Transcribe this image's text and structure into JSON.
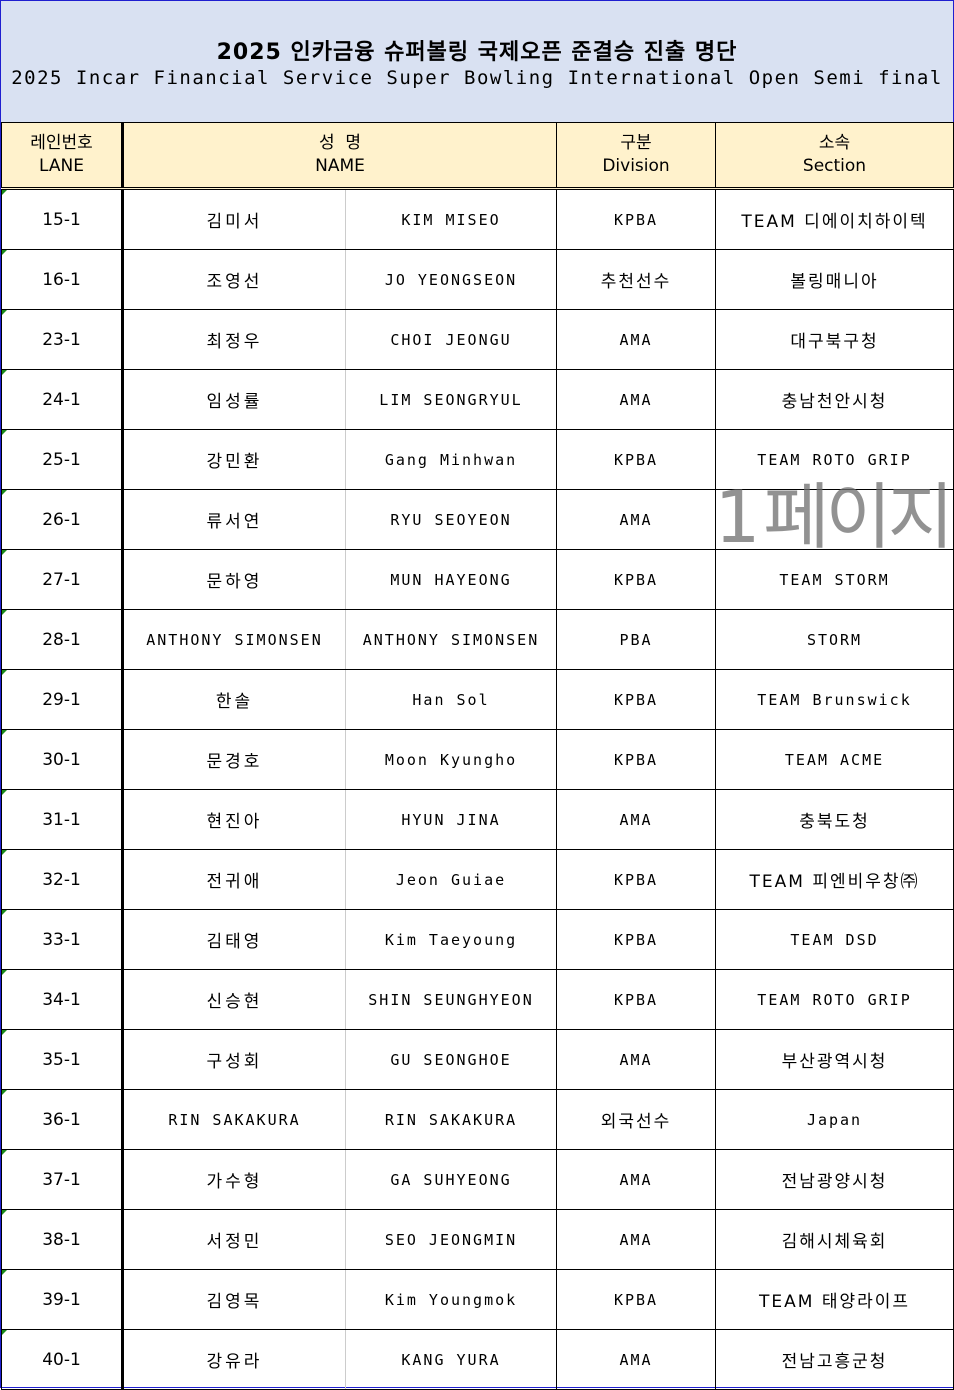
{
  "title_ko": "2025 인카금융 슈퍼볼링 국제오픈 준결승 진출 명단",
  "title_en": "2025 Incar Financial Service Super Bowling International Open Semi final",
  "headers": {
    "lane_ko": "레인번호",
    "lane_en": "LANE",
    "name_ko": "성  명",
    "name_en": "NAME",
    "div_ko": "구분",
    "div_en": "Division",
    "sec_ko": "소속",
    "sec_en": "Section"
  },
  "watermark": "1 페이지",
  "rows": [
    {
      "lane": "15-1",
      "ko": "김미서",
      "en": "KIM MISEO",
      "div": "KPBA",
      "sec": "TEAM 디에이치하이텍"
    },
    {
      "lane": "16-1",
      "ko": "조영선",
      "en": "JO YEONGSEON",
      "div": "추천선수",
      "sec": "볼링매니아"
    },
    {
      "lane": "23-1",
      "ko": "최정우",
      "en": "CHOI JEONGU",
      "div": "AMA",
      "sec": "대구북구청"
    },
    {
      "lane": "24-1",
      "ko": "임성률",
      "en": "LIM SEONGRYUL",
      "div": "AMA",
      "sec": "충남천안시청"
    },
    {
      "lane": "25-1",
      "ko": "강민환",
      "en": "Gang Minhwan",
      "div": "KPBA",
      "sec": "TEAM ROTO GRIP"
    },
    {
      "lane": "26-1",
      "ko": "류서연",
      "en": "RYU SEOYEON",
      "div": "AMA",
      "sec": ""
    },
    {
      "lane": "27-1",
      "ko": "문하영",
      "en": "MUN HAYEONG",
      "div": "KPBA",
      "sec": "TEAM STORM"
    },
    {
      "lane": "28-1",
      "ko": "ANTHONY SIMONSEN",
      "en": "ANTHONY SIMONSEN",
      "div": "PBA",
      "sec": "STORM"
    },
    {
      "lane": "29-1",
      "ko": "한솔",
      "en": "Han Sol",
      "div": "KPBA",
      "sec": "TEAM Brunswick"
    },
    {
      "lane": "30-1",
      "ko": "문경호",
      "en": "Moon Kyungho",
      "div": "KPBA",
      "sec": "TEAM ACME"
    },
    {
      "lane": "31-1",
      "ko": "현진아",
      "en": "HYUN JINA",
      "div": "AMA",
      "sec": "충북도청"
    },
    {
      "lane": "32-1",
      "ko": "전귀애",
      "en": "Jeon Guiae",
      "div": "KPBA",
      "sec": "TEAM 피엔비우창㈜"
    },
    {
      "lane": "33-1",
      "ko": "김태영",
      "en": "Kim Taeyoung",
      "div": "KPBA",
      "sec": "TEAM DSD"
    },
    {
      "lane": "34-1",
      "ko": "신승현",
      "en": "SHIN SEUNGHYEON",
      "div": "KPBA",
      "sec": "TEAM ROTO GRIP"
    },
    {
      "lane": "35-1",
      "ko": "구성회",
      "en": "GU SEONGHOE",
      "div": "AMA",
      "sec": "부산광역시청"
    },
    {
      "lane": "36-1",
      "ko": "RIN SAKAKURA",
      "en": "RIN SAKAKURA",
      "div": "외국선수",
      "sec": "Japan"
    },
    {
      "lane": "37-1",
      "ko": "가수형",
      "en": "GA SUHYEONG",
      "div": "AMA",
      "sec": "전남광양시청"
    },
    {
      "lane": "38-1",
      "ko": "서정민",
      "en": "SEO JEONGMIN",
      "div": "AMA",
      "sec": "김해시체육회"
    },
    {
      "lane": "39-1",
      "ko": "김영목",
      "en": "Kim Youngmok",
      "div": "KPBA",
      "sec": "TEAM 태양라이프"
    },
    {
      "lane": "40-1",
      "ko": "강유라",
      "en": "KANG YURA",
      "div": "AMA",
      "sec": "전남고흥군청"
    }
  ]
}
